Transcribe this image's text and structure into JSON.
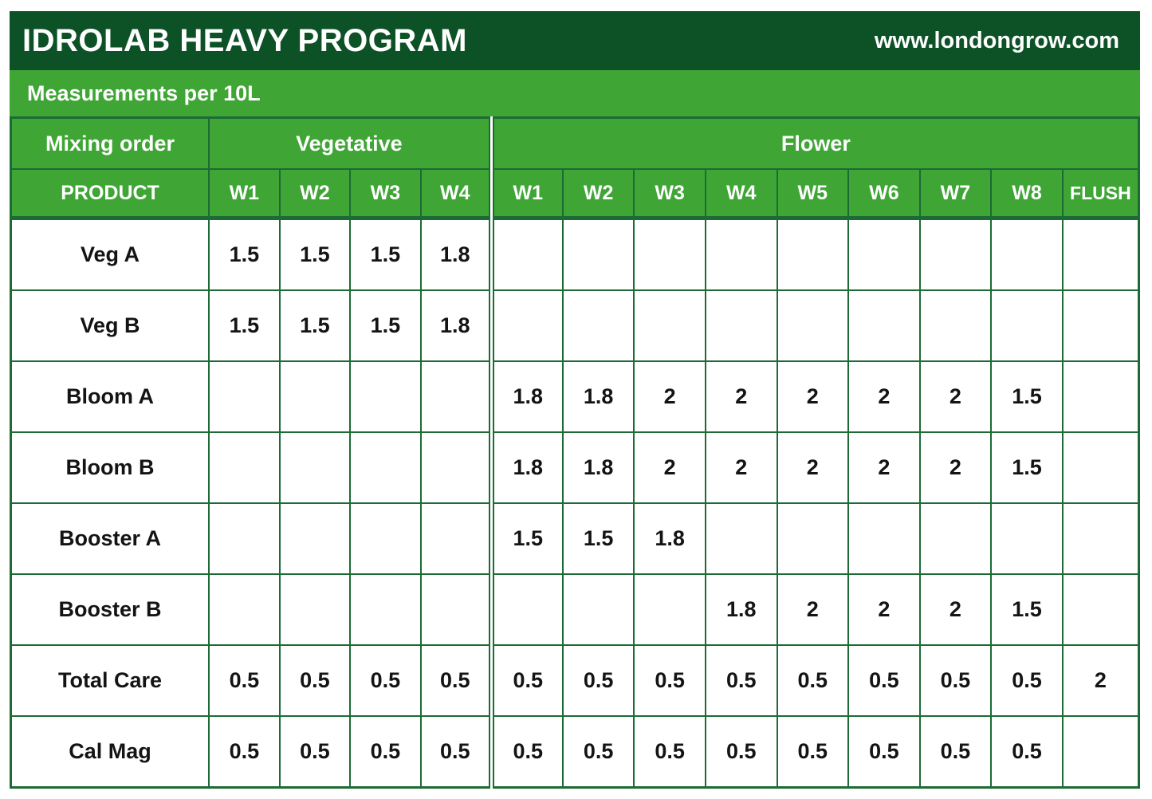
{
  "header": {
    "title": "IDROLAB HEAVY PROGRAM",
    "url": "www.londongrow.com"
  },
  "subheader": {
    "label": "Measurements per 10L"
  },
  "colors": {
    "dark_green": "#0d5227",
    "medium_green": "#3fa636",
    "border_green": "#1c6b34"
  },
  "table": {
    "group_headers": {
      "mixing_order": "Mixing order",
      "vegetative": "Vegetative",
      "flower": "Flower"
    },
    "columns": {
      "product": "PRODUCT",
      "veg_weeks": [
        "W1",
        "W2",
        "W3",
        "W4"
      ],
      "flower_weeks": [
        "W1",
        "W2",
        "W3",
        "W4",
        "W5",
        "W6",
        "W7",
        "W8"
      ],
      "flush": "FLUSH"
    },
    "rows": [
      {
        "product": "Veg A",
        "veg": [
          "1.5",
          "1.5",
          "1.5",
          "1.8"
        ],
        "flower": [
          "",
          "",
          "",
          "",
          "",
          "",
          "",
          ""
        ],
        "flush": ""
      },
      {
        "product": "Veg B",
        "veg": [
          "1.5",
          "1.5",
          "1.5",
          "1.8"
        ],
        "flower": [
          "",
          "",
          "",
          "",
          "",
          "",
          "",
          ""
        ],
        "flush": ""
      },
      {
        "product": "Bloom A",
        "veg": [
          "",
          "",
          "",
          ""
        ],
        "flower": [
          "1.8",
          "1.8",
          "2",
          "2",
          "2",
          "2",
          "2",
          "1.5"
        ],
        "flush": ""
      },
      {
        "product": "Bloom B",
        "veg": [
          "",
          "",
          "",
          ""
        ],
        "flower": [
          "1.8",
          "1.8",
          "2",
          "2",
          "2",
          "2",
          "2",
          "1.5"
        ],
        "flush": ""
      },
      {
        "product": "Booster A",
        "veg": [
          "",
          "",
          "",
          ""
        ],
        "flower": [
          "1.5",
          "1.5",
          "1.8",
          "",
          "",
          "",
          "",
          ""
        ],
        "flush": ""
      },
      {
        "product": "Booster B",
        "veg": [
          "",
          "",
          "",
          ""
        ],
        "flower": [
          "",
          "",
          "",
          "1.8",
          "2",
          "2",
          "2",
          "1.5"
        ],
        "flush": ""
      },
      {
        "product": "Total Care",
        "veg": [
          "0.5",
          "0.5",
          "0.5",
          "0.5"
        ],
        "flower": [
          "0.5",
          "0.5",
          "0.5",
          "0.5",
          "0.5",
          "0.5",
          "0.5",
          "0.5"
        ],
        "flush": "2"
      },
      {
        "product": "Cal Mag",
        "veg": [
          "0.5",
          "0.5",
          "0.5",
          "0.5"
        ],
        "flower": [
          "0.5",
          "0.5",
          "0.5",
          "0.5",
          "0.5",
          "0.5",
          "0.5",
          "0.5"
        ],
        "flush": ""
      }
    ]
  }
}
